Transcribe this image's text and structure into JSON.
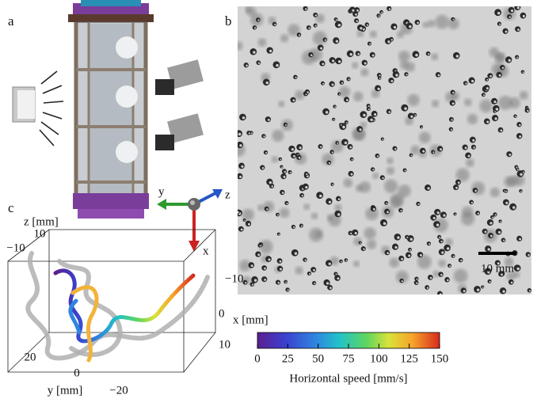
{
  "panel_labels": [
    "a",
    "b",
    "c"
  ],
  "panel_b": {
    "scale_bar": "10 mm"
  },
  "axes_triad": {
    "y": "y",
    "z": "z",
    "x": "x"
  },
  "panel_c": {
    "z_label": "z [mm]",
    "z_ticks": [
      10,
      "−10"
    ],
    "x_label": "x [mm]",
    "x_ticks": [
      "−10",
      0,
      10
    ],
    "y_label": "y [mm]",
    "y_ticks": [
      20,
      0,
      "−20"
    ]
  },
  "colorbar": {
    "lim": [
      0,
      150
    ],
    "ticks": [
      0,
      25,
      50,
      75,
      100,
      125,
      150
    ],
    "label": "Horizontal speed [mm/s]"
  }
}
